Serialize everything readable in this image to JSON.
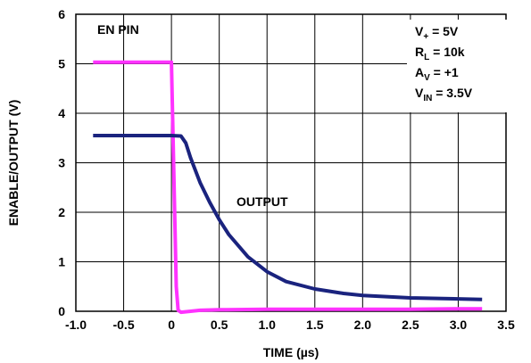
{
  "chart_data": {
    "type": "line",
    "title": "",
    "xlabel": "TIME (µs)",
    "ylabel": "ENABLE/OUTPUT (V)",
    "xlim": [
      -1.0,
      3.5
    ],
    "ylim": [
      0,
      6
    ],
    "x_ticks": [
      "-1.0",
      "-0.5",
      "0",
      "0.5",
      "1.0",
      "1.5",
      "2.0",
      "2.5",
      "3.0",
      "3.5"
    ],
    "y_ticks": [
      "0",
      "1",
      "2",
      "3",
      "4",
      "5",
      "6"
    ],
    "grid": true,
    "series": [
      {
        "name": "EN PIN",
        "color": "#ff33ff",
        "x": [
          -0.82,
          -0.5,
          0.0,
          0.05,
          0.07,
          0.1,
          0.3,
          0.5,
          1.0,
          1.5,
          2.0,
          2.5,
          3.0,
          3.25
        ],
        "y": [
          5.03,
          5.03,
          5.03,
          0.5,
          0.02,
          -0.02,
          0.02,
          0.03,
          0.04,
          0.04,
          0.04,
          0.04,
          0.05,
          0.05
        ]
      },
      {
        "name": "OUTPUT",
        "color": "#1a237e",
        "x": [
          -0.82,
          -0.5,
          0.0,
          0.1,
          0.15,
          0.2,
          0.3,
          0.4,
          0.5,
          0.6,
          0.8,
          1.0,
          1.2,
          1.5,
          1.8,
          2.0,
          2.5,
          3.0,
          3.25
        ],
        "y": [
          3.55,
          3.55,
          3.55,
          3.54,
          3.4,
          3.1,
          2.6,
          2.2,
          1.85,
          1.55,
          1.1,
          0.8,
          0.6,
          0.45,
          0.36,
          0.32,
          0.27,
          0.25,
          0.24
        ]
      }
    ],
    "annotations": {
      "en_label": "EN PIN",
      "output_label": "OUTPUT"
    },
    "conditions": [
      {
        "main": "V",
        "sub": "+",
        "rest": " = 5V"
      },
      {
        "main": "R",
        "sub": "L",
        "rest": " = 10k"
      },
      {
        "main": "A",
        "sub": "V",
        "rest": " = +1"
      },
      {
        "main": "V",
        "sub": "IN",
        "rest": " = 3.5V"
      }
    ]
  }
}
